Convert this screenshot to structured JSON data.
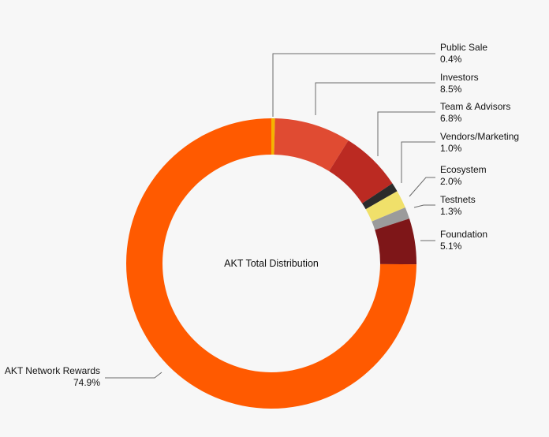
{
  "chart_data": {
    "type": "pie",
    "title": "AKT Total Distribution",
    "slices": [
      {
        "label": "Public Sale",
        "value": 0.4,
        "value_label": "0.4%",
        "color": "#f5b400"
      },
      {
        "label": "Investors",
        "value": 8.5,
        "value_label": "8.5%",
        "color": "#e04b32"
      },
      {
        "label": "Team & Advisors",
        "value": 6.8,
        "value_label": "6.8%",
        "color": "#bb2a22"
      },
      {
        "label": "Vendors/Marketing",
        "value": 1.0,
        "value_label": "1.0%",
        "color": "#2b2b2b"
      },
      {
        "label": "Ecosystem",
        "value": 2.0,
        "value_label": "2.0%",
        "color": "#f0e06a"
      },
      {
        "label": "Testnets",
        "value": 1.3,
        "value_label": "1.3%",
        "color": "#9b9b9b"
      },
      {
        "label": "Foundation",
        "value": 5.1,
        "value_label": "5.1%",
        "color": "#7e1618"
      },
      {
        "label": "AKT Network Rewards",
        "value": 74.9,
        "value_label": "74.9%",
        "color": "#ff5a00"
      }
    ]
  }
}
